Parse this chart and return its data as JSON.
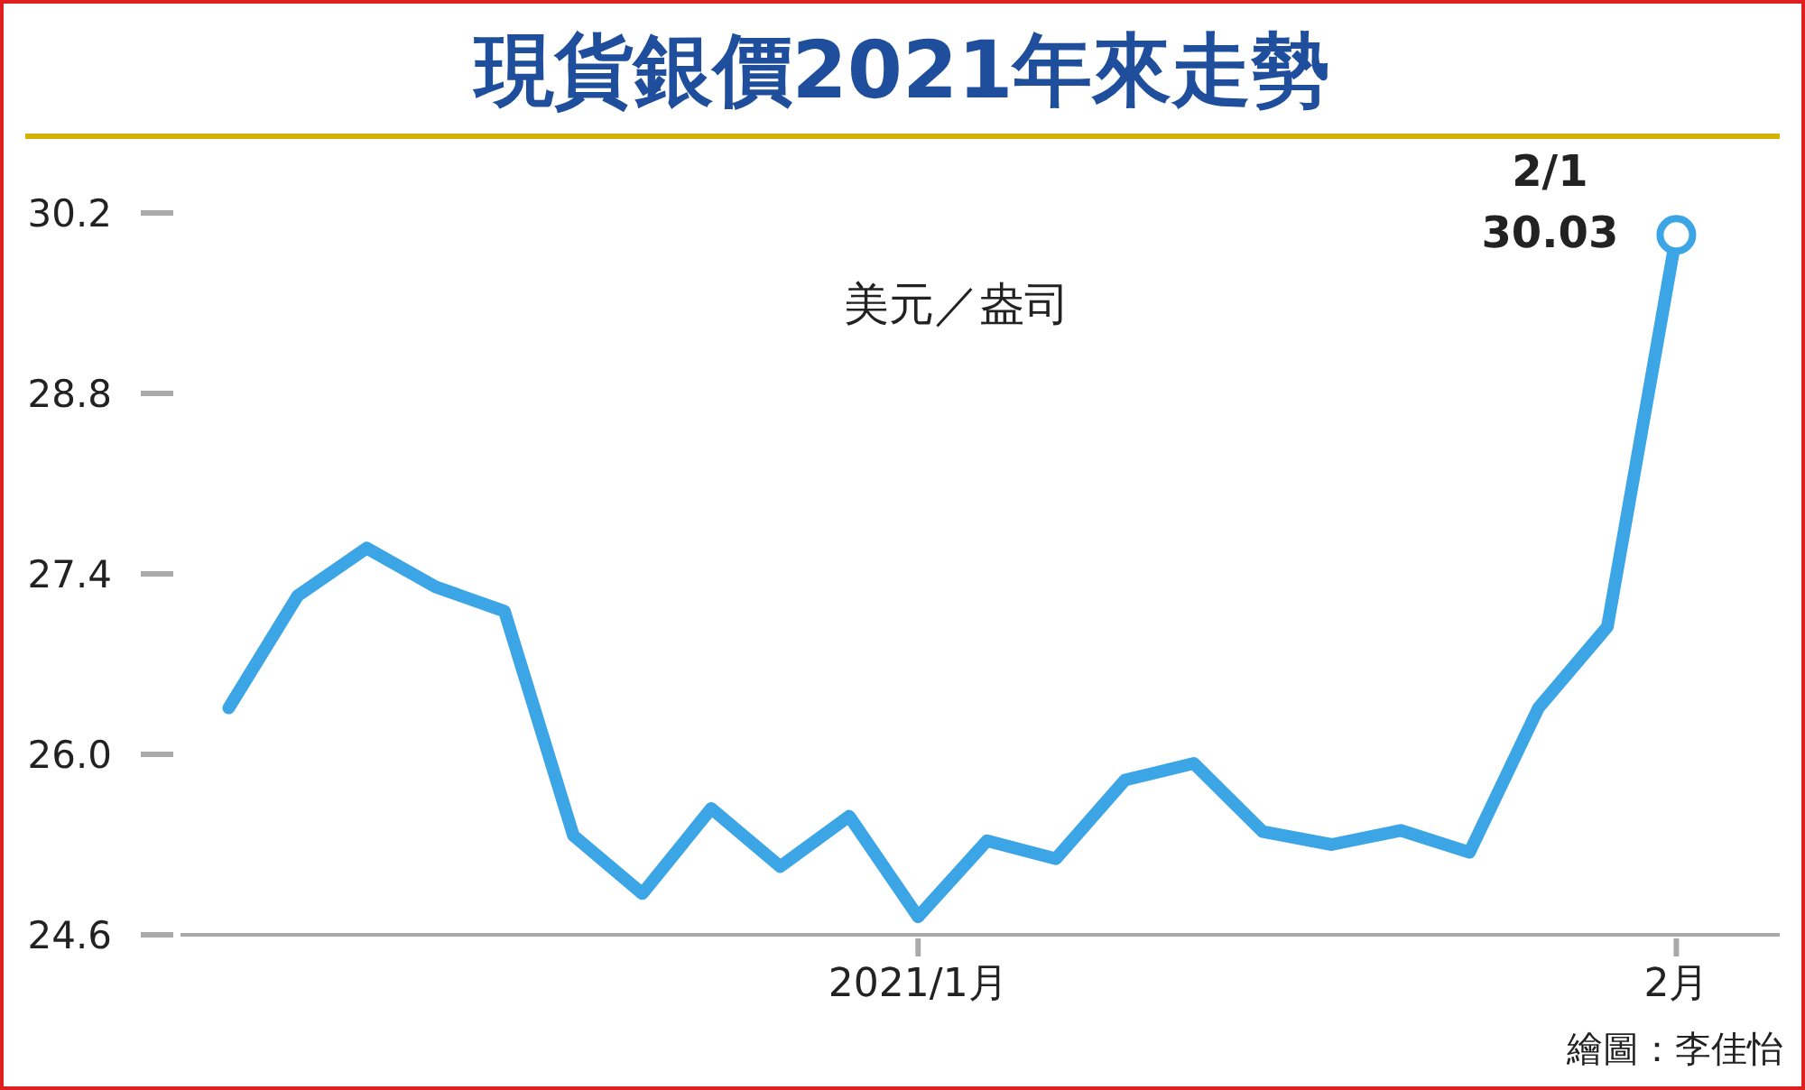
{
  "chart_data": {
    "type": "line",
    "title": "現貨銀價2021年來走勢",
    "ylabel": "美元／盎司",
    "categories": [
      null,
      null,
      null,
      null,
      null,
      null,
      null,
      null,
      null,
      null,
      "2021/1月",
      null,
      null,
      null,
      null,
      null,
      null,
      null,
      null,
      null,
      null,
      "2月"
    ],
    "series": [
      {
        "color": "#3ca5e6",
        "values": [
          26.36,
          27.23,
          27.6,
          27.3,
          27.11,
          25.37,
          24.92,
          25.58,
          25.13,
          25.52,
          24.74,
          25.33,
          25.19,
          25.8,
          25.93,
          25.4,
          25.3,
          25.41,
          25.24,
          26.36,
          26.99,
          30.03
        ]
      }
    ],
    "ylim": [
      24.6,
      30.2
    ],
    "yticks": [
      {
        "value": 24.6,
        "label": "24.6"
      },
      {
        "value": 26,
        "label": "26.0"
      },
      {
        "value": 27.4,
        "label": "27.4"
      },
      {
        "value": 28.8,
        "label": "28.8"
      },
      {
        "value": 30.2,
        "label": "30.2"
      }
    ],
    "marker": "none",
    "line_style": "solid",
    "annotations": [
      {
        "text": "2/1\n30.03",
        "x": "2月",
        "y": 30.03
      },
      "繪圖：李佳怡"
    ]
  }
}
